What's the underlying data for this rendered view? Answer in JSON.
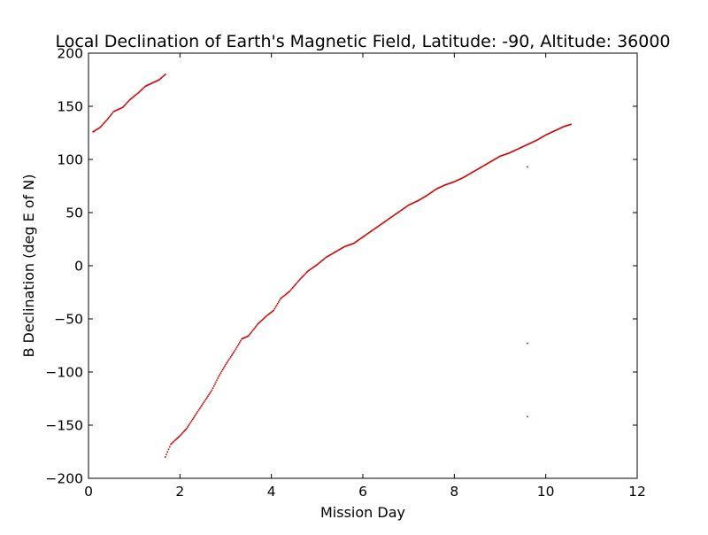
{
  "chart_data": {
    "type": "scatter",
    "title": "Local Declination of Earth's Magnetic Field, Latitude: -90, Altitude: 36000",
    "xlabel": "Mission Day",
    "ylabel": "B Declination (deg E of N)",
    "xlim": [
      0,
      12
    ],
    "ylim": [
      -200,
      200
    ],
    "xticks": [
      0,
      2,
      4,
      6,
      8,
      10,
      12
    ],
    "yticks": [
      -200,
      -150,
      -100,
      -50,
      0,
      50,
      100,
      150,
      200
    ],
    "xtick_labels": [
      "0",
      "2",
      "4",
      "6",
      "8",
      "10",
      "12"
    ],
    "ytick_labels": [
      "−200",
      "−150",
      "−100",
      "−50",
      "0",
      "50",
      "100",
      "150",
      "200"
    ],
    "grid": false,
    "legend": "none",
    "marker_color": "#cc0000",
    "series": [
      {
        "points": [
          [
            0.1,
            126
          ],
          [
            0.25,
            130
          ],
          [
            0.4,
            137
          ],
          [
            0.55,
            145
          ],
          [
            0.75,
            149
          ],
          [
            0.9,
            156
          ],
          [
            1.1,
            163
          ],
          [
            1.25,
            169
          ],
          [
            1.4,
            172
          ],
          [
            1.55,
            175
          ],
          [
            1.68,
            180
          ],
          [
            1.68,
            -180
          ],
          [
            1.8,
            -168
          ],
          [
            2.0,
            -160
          ],
          [
            2.15,
            -153
          ],
          [
            2.3,
            -143
          ],
          [
            2.5,
            -130
          ],
          [
            2.7,
            -117
          ],
          [
            2.85,
            -104
          ],
          [
            3.0,
            -93
          ],
          [
            3.2,
            -80
          ],
          [
            3.35,
            -69
          ],
          [
            3.5,
            -66
          ],
          [
            3.7,
            -55
          ],
          [
            3.9,
            -47
          ],
          [
            4.05,
            -42
          ],
          [
            4.2,
            -31
          ],
          [
            4.4,
            -24
          ],
          [
            4.6,
            -14
          ],
          [
            4.8,
            -5
          ],
          [
            5.0,
            1
          ],
          [
            5.2,
            8
          ],
          [
            5.4,
            13
          ],
          [
            5.6,
            18
          ],
          [
            5.8,
            21
          ],
          [
            6.0,
            27
          ],
          [
            6.2,
            33
          ],
          [
            6.4,
            39
          ],
          [
            6.6,
            45
          ],
          [
            6.8,
            51
          ],
          [
            7.0,
            57
          ],
          [
            7.2,
            61
          ],
          [
            7.4,
            66
          ],
          [
            7.6,
            72
          ],
          [
            7.8,
            76
          ],
          [
            8.0,
            79
          ],
          [
            8.2,
            83
          ],
          [
            8.4,
            88
          ],
          [
            8.6,
            93
          ],
          [
            8.8,
            98
          ],
          [
            9.0,
            103
          ],
          [
            9.2,
            106
          ],
          [
            9.4,
            110
          ],
          [
            9.6,
            114
          ],
          [
            9.8,
            118
          ],
          [
            10.0,
            123
          ],
          [
            10.2,
            127
          ],
          [
            10.4,
            131
          ],
          [
            10.55,
            133
          ],
          [
            9.6,
            93
          ],
          [
            9.6,
            -73
          ],
          [
            9.6,
            -142
          ]
        ]
      }
    ]
  }
}
